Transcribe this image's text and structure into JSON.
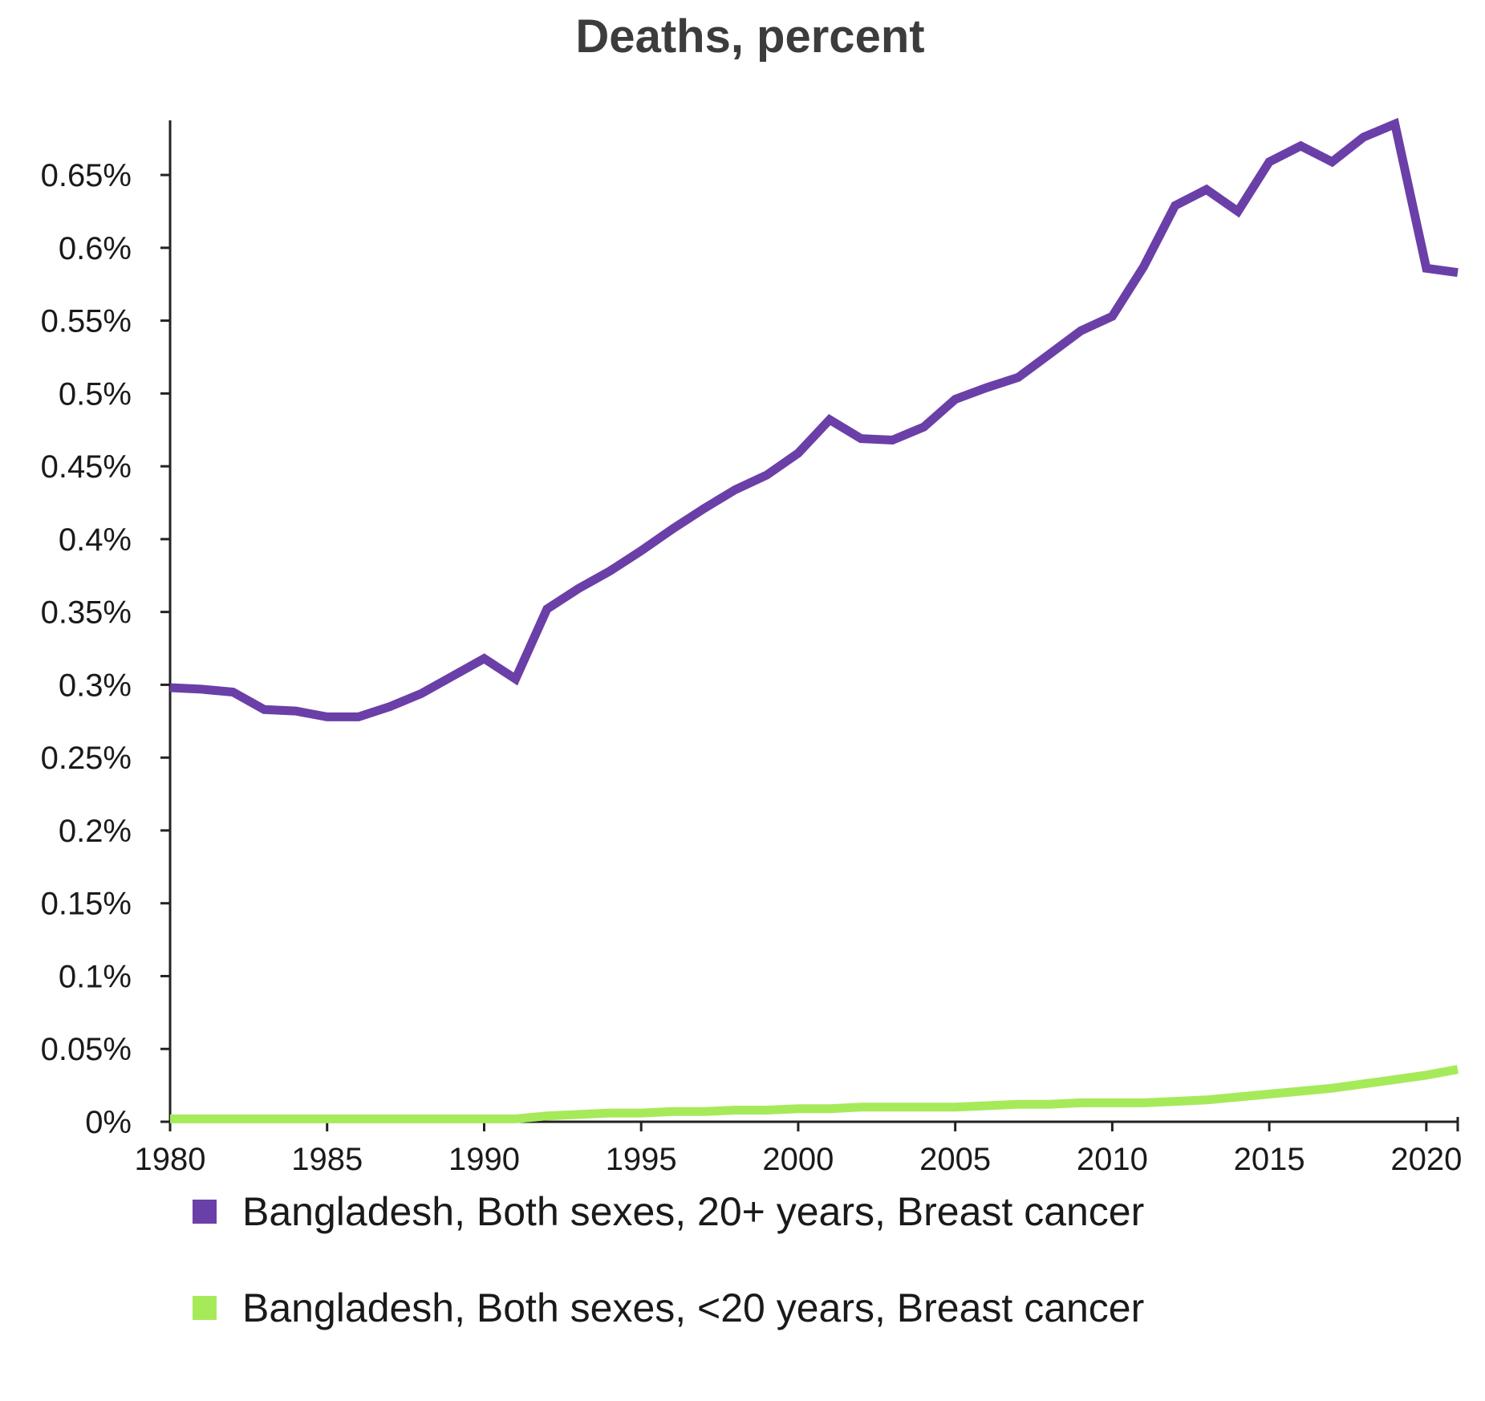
{
  "chart_data": {
    "type": "line",
    "title": "Deaths, percent",
    "xlabel": "",
    "ylabel": "",
    "xlim": [
      1980,
      2021
    ],
    "ylim": [
      0,
      0.6875
    ],
    "x_ticks": [
      1980,
      1985,
      1990,
      1995,
      2000,
      2005,
      2010,
      2015,
      2020
    ],
    "x_tick_labels": [
      "1980",
      "1985",
      "1990",
      "1995",
      "2000",
      "2005",
      "2010",
      "2015",
      "2020"
    ],
    "y_ticks": [
      0,
      0.05,
      0.1,
      0.15,
      0.2,
      0.25,
      0.3,
      0.35,
      0.4,
      0.45,
      0.5,
      0.55,
      0.6,
      0.65
    ],
    "y_tick_labels": [
      "0%",
      "0.05%",
      "0.1%",
      "0.15%",
      "0.2%",
      "0.25%",
      "0.3%",
      "0.35%",
      "0.4%",
      "0.45%",
      "0.5%",
      "0.55%",
      "0.6%",
      "0.65%"
    ],
    "grid": false,
    "legend_position": "bottom",
    "x": [
      1980,
      1981,
      1982,
      1983,
      1984,
      1985,
      1986,
      1987,
      1988,
      1989,
      1990,
      1991,
      1992,
      1993,
      1994,
      1995,
      1996,
      1997,
      1998,
      1999,
      2000,
      2001,
      2002,
      2003,
      2004,
      2005,
      2006,
      2007,
      2008,
      2009,
      2010,
      2011,
      2012,
      2013,
      2014,
      2015,
      2016,
      2017,
      2018,
      2019,
      2020,
      2021
    ],
    "series": [
      {
        "name": "Bangladesh, Both sexes, 20+ years, Breast cancer",
        "color": "#6b3fa8",
        "values": [
          0.298,
          0.297,
          0.295,
          0.283,
          0.282,
          0.278,
          0.278,
          0.285,
          0.294,
          0.306,
          0.318,
          0.304,
          0.352,
          0.366,
          0.378,
          0.392,
          0.407,
          0.421,
          0.434,
          0.444,
          0.459,
          0.482,
          0.469,
          0.468,
          0.477,
          0.496,
          0.504,
          0.511,
          0.527,
          0.543,
          0.553,
          0.587,
          0.629,
          0.64,
          0.625,
          0.659,
          0.67,
          0.659,
          0.676,
          0.685,
          0.586,
          0.583
        ]
      },
      {
        "name": "Bangladesh, Both sexes, <20 years, Breast cancer",
        "color": "#a6ea5a",
        "values": [
          0.002,
          0.002,
          0.002,
          0.002,
          0.002,
          0.002,
          0.002,
          0.002,
          0.002,
          0.002,
          0.002,
          0.002,
          0.004,
          0.005,
          0.006,
          0.006,
          0.007,
          0.007,
          0.008,
          0.008,
          0.009,
          0.009,
          0.01,
          0.01,
          0.01,
          0.01,
          0.011,
          0.012,
          0.012,
          0.013,
          0.013,
          0.013,
          0.014,
          0.015,
          0.017,
          0.019,
          0.021,
          0.023,
          0.026,
          0.029,
          0.032,
          0.036
        ]
      }
    ]
  }
}
